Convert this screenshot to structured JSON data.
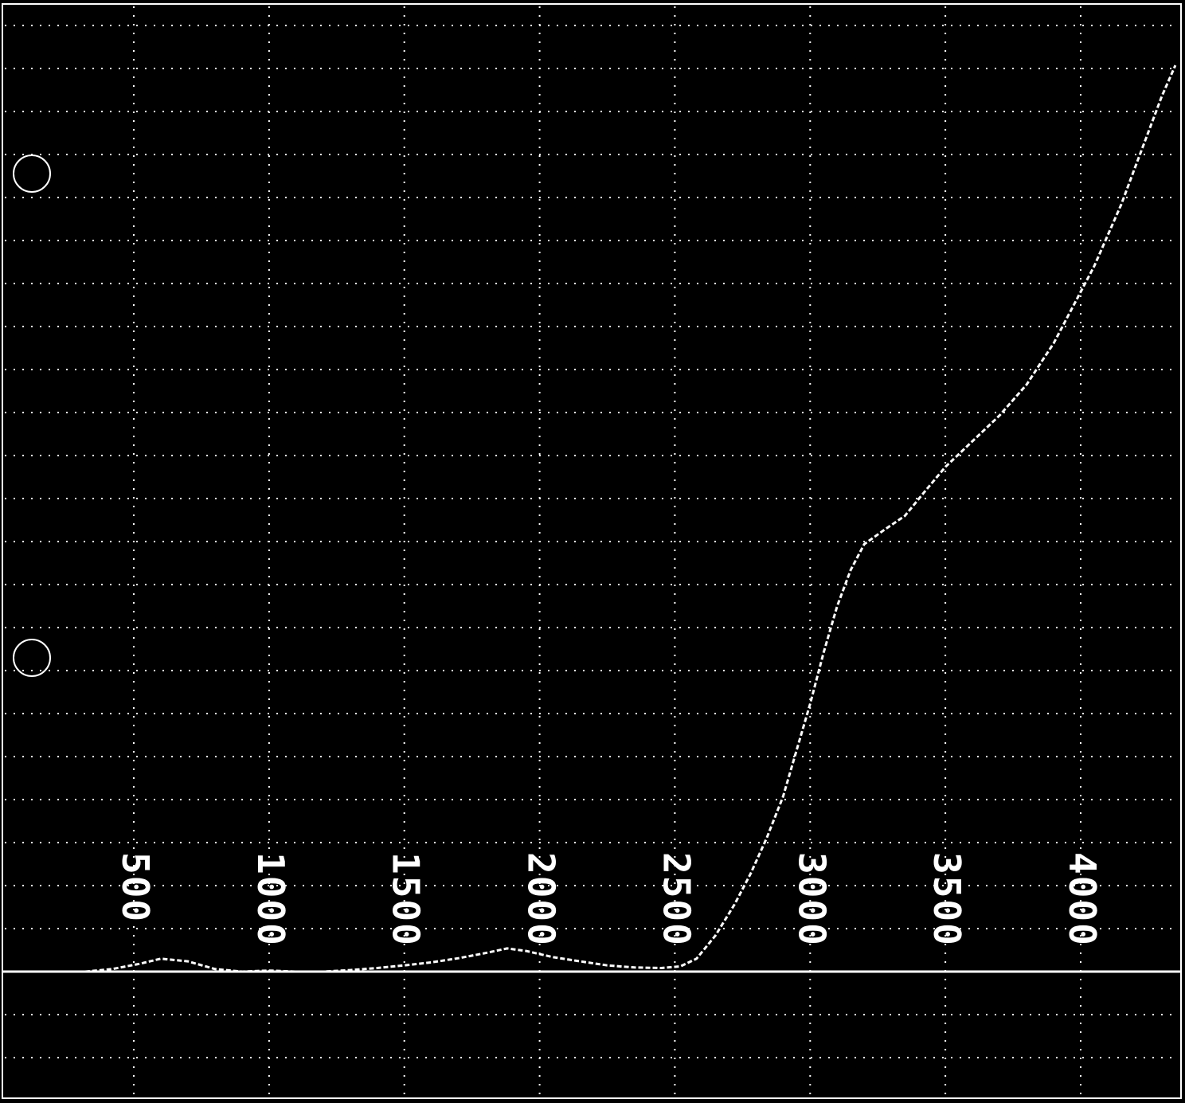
{
  "colors": {
    "background": "#000000",
    "grid": "#ffffff",
    "trace": "#ffffff",
    "baseline": "#ffffff"
  },
  "chart_data": {
    "type": "line",
    "title": "",
    "xlabel": "",
    "ylabel": "",
    "xlim": [
      0,
      4400
    ],
    "ylim": [
      -2,
      13
    ],
    "x_ticks": [
      "500",
      "1000",
      "1500",
      "2000",
      "2500",
      "3000",
      "3500",
      "4000"
    ],
    "x_tick_values": [
      500,
      1000,
      1500,
      2000,
      2500,
      3000,
      3500,
      4000
    ],
    "tick_label_orientation": "vertical",
    "grid": true,
    "legend": "none",
    "series": [
      {
        "values_x": [
          320,
          420,
          520,
          600,
          700,
          800,
          900,
          1000,
          1100,
          1200,
          1300,
          1400,
          1500,
          1600,
          1700,
          1800,
          1880,
          1950,
          2050,
          2150,
          2250,
          2350,
          2450,
          2520,
          2580,
          2650,
          2720,
          2780,
          2840,
          2900,
          2950,
          3000,
          3050,
          3100,
          3150,
          3200,
          3280,
          3350,
          3420,
          3500,
          3600,
          3700,
          3800,
          3850,
          3900,
          3950,
          4000,
          4050,
          4100,
          4150,
          4200,
          4250,
          4300,
          4350
        ],
        "values_y": [
          0.0,
          0.05,
          0.15,
          0.25,
          0.2,
          0.05,
          0.0,
          0.02,
          0.0,
          0.0,
          0.03,
          0.07,
          0.12,
          0.18,
          0.26,
          0.36,
          0.45,
          0.4,
          0.28,
          0.2,
          0.12,
          0.08,
          0.07,
          0.1,
          0.25,
          0.7,
          1.3,
          1.9,
          2.6,
          3.4,
          4.3,
          5.2,
          6.2,
          7.1,
          7.8,
          8.3,
          8.6,
          8.85,
          9.3,
          9.8,
          10.3,
          10.8,
          11.4,
          11.8,
          12.2,
          12.7,
          13.2,
          13.7,
          14.3,
          14.9,
          15.6,
          16.3,
          17.0,
          17.6
        ]
      }
    ]
  }
}
